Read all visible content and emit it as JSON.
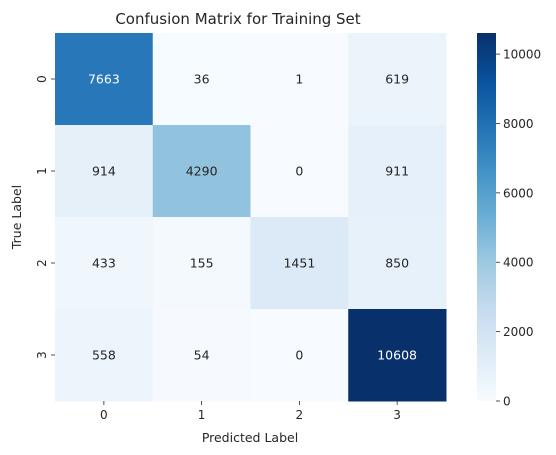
{
  "chart_data": {
    "type": "heatmap",
    "title": "Confusion Matrix for Training Set",
    "xlabel": "Predicted Label",
    "ylabel": "True Label",
    "x_categories": [
      "0",
      "1",
      "2",
      "3"
    ],
    "y_categories": [
      "0",
      "1",
      "2",
      "3"
    ],
    "values": [
      [
        7663,
        36,
        1,
        619
      ],
      [
        914,
        4290,
        0,
        911
      ],
      [
        433,
        155,
        1451,
        850
      ],
      [
        558,
        54,
        0,
        10608
      ]
    ],
    "colorbar": {
      "min": 0,
      "max": 10608,
      "ticks": [
        0,
        2000,
        4000,
        6000,
        8000,
        10000
      ],
      "colormap": "Blues"
    }
  }
}
